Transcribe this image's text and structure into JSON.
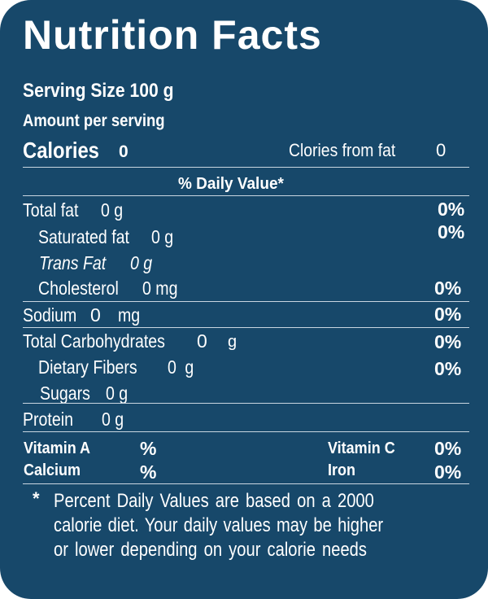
{
  "title": "Nutrition Facts",
  "serving_size": "Serving Size 100 g",
  "amount_per_serving": "Amount per serving",
  "calories": {
    "label": "Calories",
    "value": "0"
  },
  "calories_from_fat": {
    "label": "Clories from fat",
    "value": "0"
  },
  "daily_value_header": "% Daily Value*",
  "nutrients": {
    "total_fat": {
      "label": "Total fat",
      "value": "0 g",
      "pct": "0%"
    },
    "saturated_fat": {
      "label": "Saturated fat",
      "value": "0 g",
      "pct": "0%"
    },
    "trans_fat": {
      "label": "Trans Fat",
      "value": "0 g"
    },
    "cholesterol": {
      "label": "Cholesterol",
      "value": "0 mg",
      "pct": "0%"
    },
    "sodium": {
      "label": "Sodium",
      "value": "0",
      "unit": "mg",
      "pct": "0%"
    },
    "total_carbohydrates": {
      "label": "Total Carbohydrates",
      "value": "0",
      "unit": "g",
      "pct": "0%"
    },
    "dietary_fibers": {
      "label": "Dietary Fibers",
      "value": "0 g",
      "pct": "0%"
    },
    "sugars": {
      "label": "Sugars",
      "value": "0 g"
    },
    "protein": {
      "label": "Protein",
      "value": "0 g"
    }
  },
  "vitamins": {
    "vitamin_a": {
      "label": "Vitamin A",
      "pct": "%"
    },
    "vitamin_c": {
      "label": "Vitamin C",
      "pct": "0%"
    },
    "calcium": {
      "label": "Calcium",
      "pct": "%"
    },
    "iron": {
      "label": "Iron",
      "pct": "0%"
    }
  },
  "footnote": {
    "star": "*",
    "line1": "Percent Daily Values are based on a 2000",
    "line2": "calorie diet. Your daily values may be higher",
    "line3": "or lower depending on your calorie needs"
  },
  "colors": {
    "background": "#17486a",
    "text": "#ffffff",
    "divider": "#c9d6e1"
  }
}
